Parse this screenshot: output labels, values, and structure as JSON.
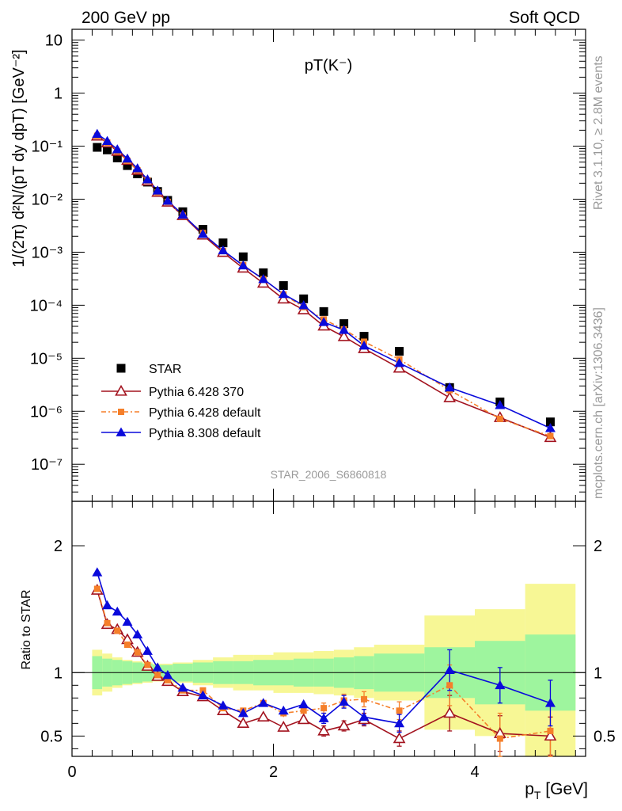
{
  "header": {
    "left": "200 GeV pp",
    "right": "Soft QCD"
  },
  "side_labels": {
    "rivet": "Rivet 3.1.10, ≥ 2.8M events",
    "mcplots": "mcplots.cern.ch [arXiv:1306.3436]"
  },
  "colors": {
    "data": "#000000",
    "pythia6_370": "#a3131f",
    "pythia6_default": "#f57f2a",
    "pythia8": "#0a0adb",
    "band_inner": "#9ef59e",
    "band_outer": "#f7f795"
  },
  "chart_data": [
    {
      "type": "scatter",
      "title": "pT(K⁻)",
      "watermark": "STAR_2006_S6860818",
      "ylabel": "1/(2π) d²N/(pT dy dpT) [GeV⁻²]",
      "yscale": "log",
      "ylim": [
        2e-08,
        16
      ],
      "xlim": [
        0,
        5.1
      ],
      "y_ticks": [
        "10⁻⁷",
        "10⁻⁶",
        "10⁻⁵",
        "10⁻⁴",
        "10⁻³",
        "10⁻²",
        "10⁻¹",
        "1",
        "10"
      ],
      "legend_position": "bottom-left",
      "x": [
        0.25,
        0.35,
        0.45,
        0.55,
        0.65,
        0.75,
        0.85,
        0.95,
        1.1,
        1.3,
        1.5,
        1.7,
        1.9,
        2.1,
        2.3,
        2.5,
        2.7,
        2.9,
        3.25,
        3.75,
        4.25,
        4.75
      ],
      "series": [
        {
          "name": "STAR",
          "marker": "square",
          "values": [
            0.095,
            0.085,
            0.06,
            0.043,
            0.03,
            0.021,
            0.014,
            0.0095,
            0.0058,
            0.0027,
            0.0015,
            0.00082,
            0.00041,
            0.000235,
            0.000132,
            7.6e-05,
            4.5e-05,
            2.6e-05,
            1.35e-05,
            2.8e-06,
            1.5e-06,
            6.3e-07
          ]
        },
        {
          "name": "Pythia 6.428 370",
          "marker": "open-triangle",
          "values": [
            0.155,
            0.115,
            0.08,
            0.054,
            0.035,
            0.022,
            0.0135,
            0.0088,
            0.0049,
            0.0021,
            0.00099,
            0.0005,
            0.00026,
            0.000131,
            8.2e-05,
            4.05e-05,
            2.55e-05,
            1.52e-05,
            6.5e-06,
            1.8e-06,
            7.6e-07,
            3.2e-07
          ]
        },
        {
          "name": "Pythia 6.428 default",
          "marker": "square-small",
          "values": [
            0.157,
            0.117,
            0.079,
            0.053,
            0.035,
            0.0225,
            0.0135,
            0.0089,
            0.0049,
            0.0023,
            0.00105,
            0.00057,
            0.00031,
            0.00016,
            9.2e-05,
            5.4e-05,
            3.5e-05,
            2.05e-05,
            9.5e-06,
            2.5e-06,
            7.2e-07,
            3.4e-07
          ]
        },
        {
          "name": "Pythia 8.308 default",
          "marker": "triangle",
          "values": [
            0.17,
            0.125,
            0.087,
            0.058,
            0.038,
            0.0235,
            0.0145,
            0.0093,
            0.0051,
            0.0022,
            0.00108,
            0.00056,
            0.00031,
            0.000162,
            9.9e-05,
            4.8e-05,
            3.4e-05,
            1.72e-05,
            8.1e-06,
            2.8e-06,
            1.3e-06,
            4.8e-07
          ]
        }
      ]
    },
    {
      "type": "line",
      "ylabel": "Ratio to STAR",
      "xlabel": "p_T [GeV]",
      "xlim": [
        0,
        5.1
      ],
      "ylim": [
        0.34,
        2.35
      ],
      "x_ticks": [
        "0",
        "2",
        "4"
      ],
      "y_ticks": [
        "0.5",
        "1",
        "2"
      ],
      "x": [
        0.25,
        0.35,
        0.45,
        0.55,
        0.65,
        0.75,
        0.85,
        0.95,
        1.1,
        1.3,
        1.5,
        1.7,
        1.9,
        2.1,
        2.3,
        2.5,
        2.7,
        2.9,
        3.25,
        3.75,
        4.25,
        4.75
      ],
      "series": [
        {
          "name": "Pythia 6.428 370",
          "values": [
            1.65,
            1.38,
            1.34,
            1.26,
            1.16,
            1.05,
            0.97,
            0.93,
            0.85,
            0.81,
            0.7,
            0.6,
            0.65,
            0.57,
            0.63,
            0.54,
            0.58,
            0.63,
            0.48,
            0.68,
            0.52,
            0.5
          ],
          "errors": [
            0.02,
            0.02,
            0.02,
            0.02,
            0.02,
            0.02,
            0.02,
            0.02,
            0.02,
            0.02,
            0.02,
            0.02,
            0.02,
            0.03,
            0.03,
            0.04,
            0.04,
            0.05,
            0.06,
            0.14,
            0.14,
            0.15
          ]
        },
        {
          "name": "Pythia 6.428 default",
          "values": [
            1.66,
            1.39,
            1.33,
            1.22,
            1.16,
            1.06,
            0.98,
            0.94,
            0.86,
            0.86,
            0.72,
            0.7,
            0.76,
            0.68,
            0.7,
            0.72,
            0.78,
            0.79,
            0.7,
            0.9,
            0.48,
            0.54
          ],
          "errors": [
            0.02,
            0.02,
            0.02,
            0.02,
            0.02,
            0.02,
            0.02,
            0.02,
            0.02,
            0.02,
            0.02,
            0.02,
            0.02,
            0.03,
            0.03,
            0.04,
            0.05,
            0.06,
            0.07,
            0.16,
            0.2,
            0.2
          ]
        },
        {
          "name": "Pythia 8.308 default",
          "values": [
            1.79,
            1.53,
            1.48,
            1.4,
            1.3,
            1.17,
            1.04,
            0.98,
            0.88,
            0.82,
            0.74,
            0.68,
            0.76,
            0.7,
            0.75,
            0.64,
            0.77,
            0.65,
            0.6,
            1.02,
            0.9,
            0.76
          ],
          "errors": [
            0.02,
            0.02,
            0.02,
            0.02,
            0.02,
            0.02,
            0.02,
            0.02,
            0.02,
            0.02,
            0.02,
            0.02,
            0.02,
            0.03,
            0.03,
            0.04,
            0.05,
            0.06,
            0.07,
            0.16,
            0.14,
            0.18
          ]
        }
      ],
      "uncertainty_band": {
        "edges": [
          0.2,
          0.3,
          0.4,
          0.5,
          0.6,
          0.7,
          0.8,
          0.9,
          1.0,
          1.2,
          1.4,
          1.6,
          1.8,
          2.0,
          2.2,
          2.4,
          2.6,
          2.8,
          3.0,
          3.5,
          4.0,
          4.5,
          5.0
        ],
        "inner": [
          0.13,
          0.11,
          0.1,
          0.09,
          0.08,
          0.07,
          0.06,
          0.06,
          0.07,
          0.08,
          0.09,
          0.09,
          0.1,
          0.1,
          0.11,
          0.11,
          0.12,
          0.13,
          0.15,
          0.2,
          0.25,
          0.3
        ],
        "outer": [
          0.18,
          0.15,
          0.12,
          0.1,
          0.09,
          0.08,
          0.07,
          0.07,
          0.08,
          0.1,
          0.12,
          0.14,
          0.14,
          0.16,
          0.16,
          0.17,
          0.18,
          0.2,
          0.22,
          0.45,
          0.5,
          0.7
        ]
      }
    }
  ]
}
